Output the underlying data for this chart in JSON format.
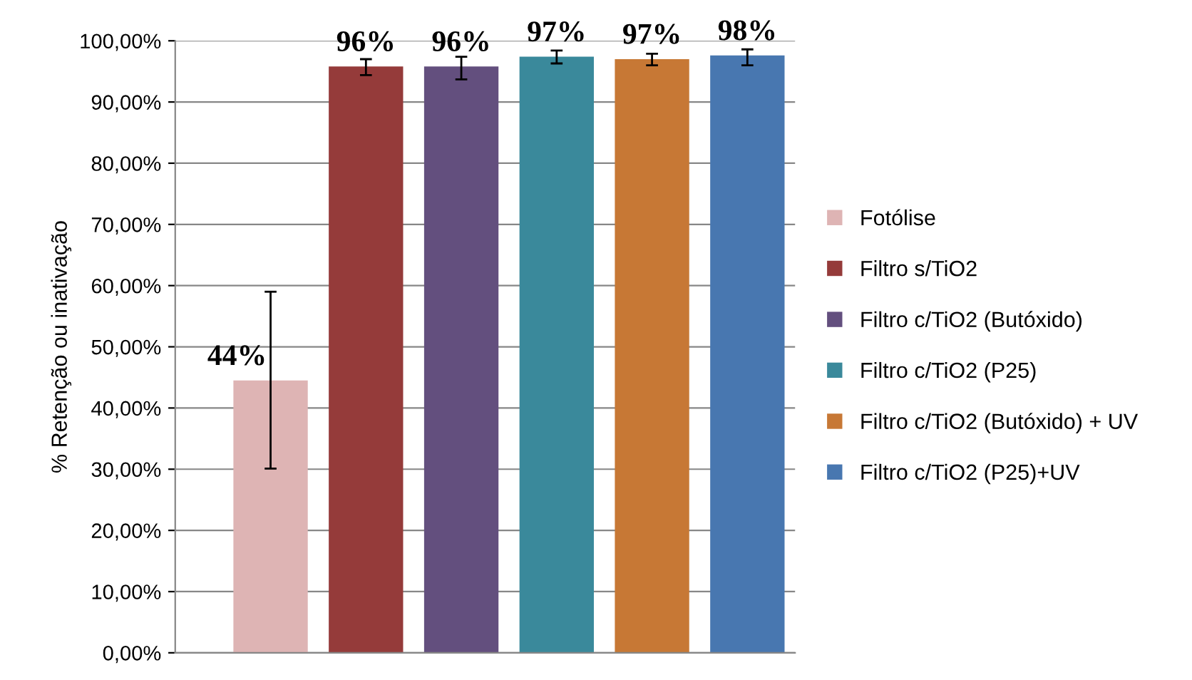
{
  "chart_data": {
    "type": "bar",
    "ylabel": "% Retenção ou inativação",
    "categories": [
      null,
      null,
      null,
      null,
      null,
      null
    ],
    "series": [
      {
        "name": "Fotólise",
        "color": "#deb4b4",
        "values": [
          44.5,
          null,
          null,
          null,
          null,
          null
        ],
        "errors": [
          [
            30.1,
            59.0
          ],
          null,
          null,
          null,
          null,
          null
        ],
        "value_labels": [
          "44%",
          null,
          null,
          null,
          null,
          null
        ]
      },
      {
        "name": "Filtro s/TiO2",
        "color": "#953b3a",
        "values": [
          null,
          95.8,
          null,
          null,
          null,
          null
        ],
        "errors": [
          null,
          [
            94.4,
            97.0
          ],
          null,
          null,
          null,
          null
        ],
        "value_labels": [
          null,
          "96%",
          null,
          null,
          null,
          null
        ]
      },
      {
        "name": "Filtro c/TiO2 (Butóxido)",
        "color": "#634f7e",
        "values": [
          null,
          null,
          95.8,
          null,
          null,
          null
        ],
        "errors": [
          null,
          null,
          [
            93.7,
            97.4
          ],
          null,
          null,
          null
        ],
        "value_labels": [
          null,
          null,
          "96%",
          null,
          null,
          null
        ]
      },
      {
        "name": "Filtro c/TiO2 (P25)",
        "color": "#3a899b",
        "values": [
          null,
          null,
          null,
          97.4,
          null,
          null
        ],
        "errors": [
          null,
          null,
          null,
          [
            96.3,
            98.4
          ],
          null,
          null
        ],
        "value_labels": [
          null,
          null,
          null,
          "97%",
          null,
          null
        ]
      },
      {
        "name": "Filtro c/TiO2 (Butóxido) + UV",
        "color": "#c77835",
        "values": [
          null,
          null,
          null,
          null,
          97.0,
          null
        ],
        "errors": [
          null,
          null,
          null,
          null,
          [
            96.0,
            97.9
          ],
          null
        ],
        "value_labels": [
          null,
          null,
          null,
          null,
          "97%",
          null
        ]
      },
      {
        "name": "Filtro c/TiO2 (P25)+UV",
        "color": "#4877b0",
        "values": [
          null,
          null,
          null,
          null,
          null,
          97.6
        ],
        "errors": [
          null,
          null,
          null,
          null,
          null,
          [
            96.0,
            98.6
          ]
        ],
        "value_labels": [
          null,
          null,
          null,
          null,
          null,
          "98%"
        ]
      }
    ],
    "ylim": [
      0,
      100
    ],
    "yticks": [
      {
        "value": 0,
        "label": "0,00%"
      },
      {
        "value": 10,
        "label": "10,00%"
      },
      {
        "value": 20,
        "label": "20,00%"
      },
      {
        "value": 30,
        "label": "30,00%"
      },
      {
        "value": 40,
        "label": "40,00%"
      },
      {
        "value": 50,
        "label": "50,00%"
      },
      {
        "value": 60,
        "label": "60,00%"
      },
      {
        "value": 70,
        "label": "70,00%"
      },
      {
        "value": 80,
        "label": "80,00%"
      },
      {
        "value": 90,
        "label": "90,00%"
      },
      {
        "value": 100,
        "label": "100,00%"
      }
    ],
    "grid": "y",
    "legend": "right"
  }
}
